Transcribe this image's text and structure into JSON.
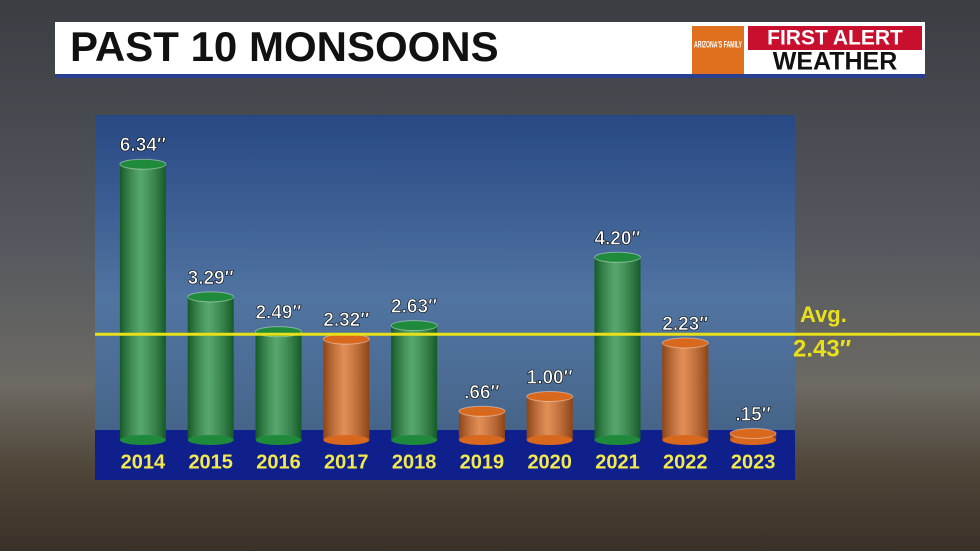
{
  "chart_data": {
    "type": "bar",
    "title": "PAST 10 MONSOONS",
    "branding": {
      "station": "ARIZONA'S FAMILY",
      "line1": "FIRST ALERT",
      "line2": "WEATHER"
    },
    "categories": [
      "2014",
      "2015",
      "2016",
      "2017",
      "2018",
      "2019",
      "2020",
      "2021",
      "2022",
      "2023"
    ],
    "values": [
      6.34,
      3.29,
      2.49,
      2.32,
      2.63,
      0.66,
      1.0,
      4.2,
      2.23,
      0.15
    ],
    "value_labels": [
      "6.34″",
      "3.29″",
      "2.49″",
      "2.32″",
      "2.63″",
      ".66″",
      "1.00″",
      "4.20″",
      "2.23″",
      ".15″"
    ],
    "colors": [
      "#1f8a3c",
      "#1f8a3c",
      "#1f8a3c",
      "#d9681f",
      "#1f8a3c",
      "#d9681f",
      "#d9681f",
      "#1f8a3c",
      "#d9681f",
      "#d9681f"
    ],
    "average": {
      "value": 2.43,
      "label": "Avg.",
      "value_label": "2.43″",
      "color": "#e8e01a"
    }
  }
}
